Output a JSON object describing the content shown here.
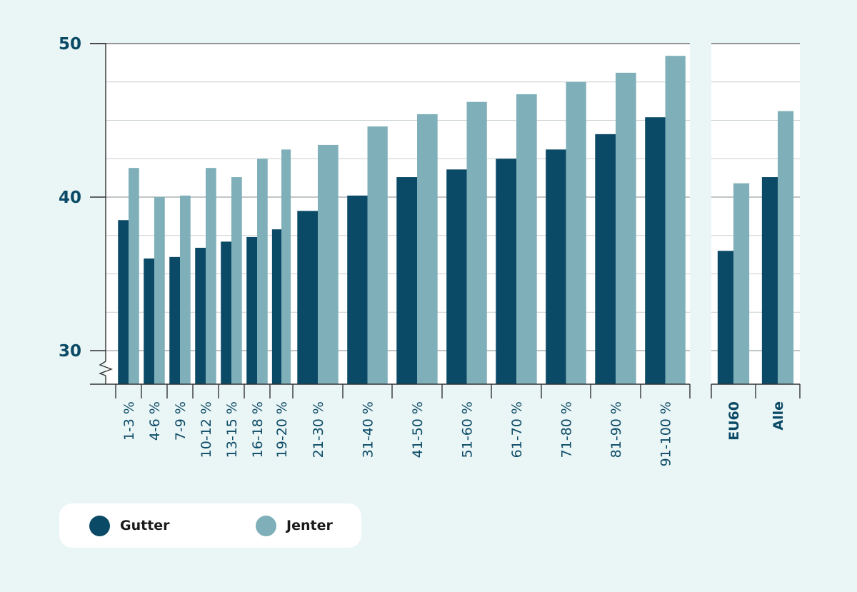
{
  "chart_data": {
    "type": "bar",
    "title": "",
    "xlabel": "",
    "ylabel": "",
    "ylim": [
      28,
      50
    ],
    "yticks": [
      30,
      40,
      50
    ],
    "axis_break": true,
    "grid": true,
    "legend_position": "bottom-left",
    "categories": [
      "1-3 %",
      "4-6 %",
      "7-9 %",
      "10-12 %",
      "13-15 %",
      "16-18 %",
      "19-20 %",
      "21-30 %",
      "31-40 %",
      "41-50 %",
      "51-60 %",
      "61-70 %",
      "71-80 %",
      "81-90 %",
      "91-100 %"
    ],
    "summary_categories": [
      "EU60",
      "Alle"
    ],
    "series": [
      {
        "name": "Gutter",
        "color": "#0b4a66",
        "values": [
          38.5,
          36.0,
          36.1,
          36.7,
          37.1,
          37.4,
          37.9,
          39.1,
          40.1,
          41.3,
          41.8,
          42.5,
          43.1,
          44.1,
          45.2
        ],
        "summary_values": [
          36.5,
          41.3
        ]
      },
      {
        "name": "Jenter",
        "color": "#7fb0b9",
        "values": [
          41.9,
          40.0,
          40.1,
          41.9,
          41.3,
          42.5,
          43.1,
          43.4,
          44.6,
          45.4,
          46.2,
          46.7,
          47.5,
          48.1,
          49.2
        ],
        "summary_values": [
          40.9,
          45.6
        ]
      }
    ]
  },
  "legend": [
    {
      "label": "Gutter",
      "color": "#0b4a66"
    },
    {
      "label": "Jenter",
      "color": "#7fb0b9"
    }
  ]
}
